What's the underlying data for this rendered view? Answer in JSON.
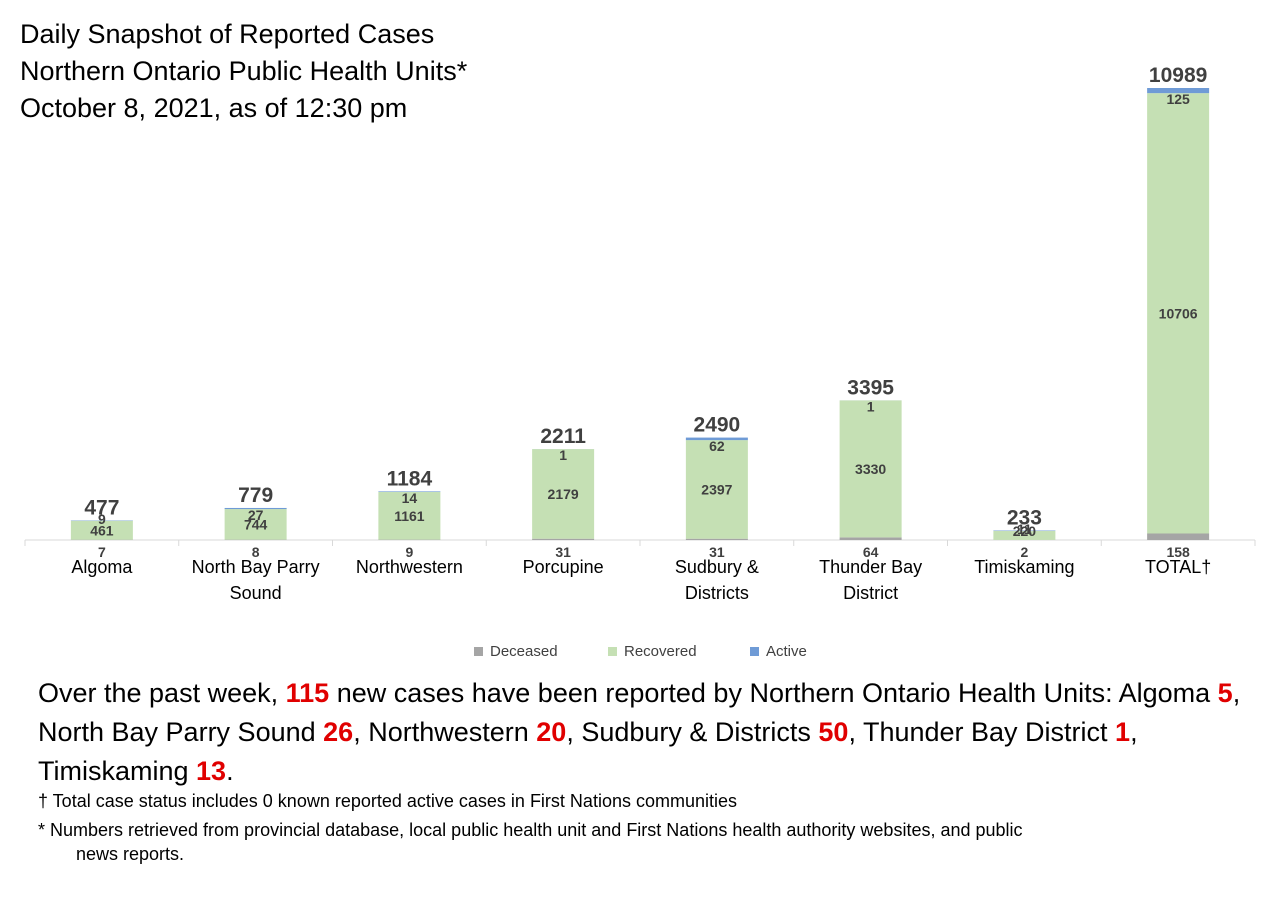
{
  "title": {
    "line1": "Daily Snapshot of Reported Cases",
    "line2": "Northern Ontario Public Health Units*",
    "line3": "October 8, 2021, as of 12:30 pm"
  },
  "chart_data": {
    "type": "bar",
    "stacked": true,
    "categories": [
      "Algoma",
      "North Bay Parry Sound",
      "Northwestern",
      "Porcupine",
      "Sudbury & Districts",
      "Thunder Bay District",
      "Timiskaming",
      "TOTAL†"
    ],
    "category_lines": [
      [
        "Algoma"
      ],
      [
        "North Bay Parry",
        "Sound"
      ],
      [
        "Northwestern"
      ],
      [
        "Porcupine"
      ],
      [
        "Sudbury &",
        "Districts"
      ],
      [
        "Thunder Bay",
        "District"
      ],
      [
        "Timiskaming"
      ],
      [
        "TOTAL†"
      ]
    ],
    "series": [
      {
        "name": "Deceased",
        "color": "#a5a5a5",
        "values": [
          7,
          8,
          9,
          31,
          31,
          64,
          2,
          158
        ]
      },
      {
        "name": "Recovered",
        "color": "#c5e0b4",
        "values": [
          461,
          744,
          1161,
          2179,
          2397,
          3330,
          220,
          10706
        ]
      },
      {
        "name": "Active",
        "color": "#6f9bd6",
        "values": [
          9,
          27,
          14,
          1,
          62,
          1,
          11,
          125
        ]
      }
    ],
    "totals": [
      477,
      779,
      1184,
      2211,
      2490,
      3395,
      233,
      10989
    ],
    "ylim": [
      0,
      11000
    ],
    "grid": false,
    "legend": "bottom"
  },
  "summary": {
    "p1": "Over the past week, ",
    "total_new": "115",
    "p2": " new cases have been reported by Northern Ontario Health Units: Algoma ",
    "algoma": "5",
    "p3": ", North Bay Parry Sound ",
    "nbps": "26",
    "p4": ", Northwestern ",
    "northwestern": "20",
    "p5": ", Sudbury & Districts ",
    "sudbury": "50",
    "p6": ", Thunder Bay District ",
    "thunder_bay": "1",
    "p7": ", Timiskaming ",
    "timiskaming": "13",
    "p8": "."
  },
  "footnotes": {
    "dagger": "† Total case status includes 0 known reported active cases in First Nations communities",
    "star_line1": "* Numbers retrieved from provincial database, local public health unit and First Nations health authority websites, and public",
    "star_line2": "news reports."
  }
}
